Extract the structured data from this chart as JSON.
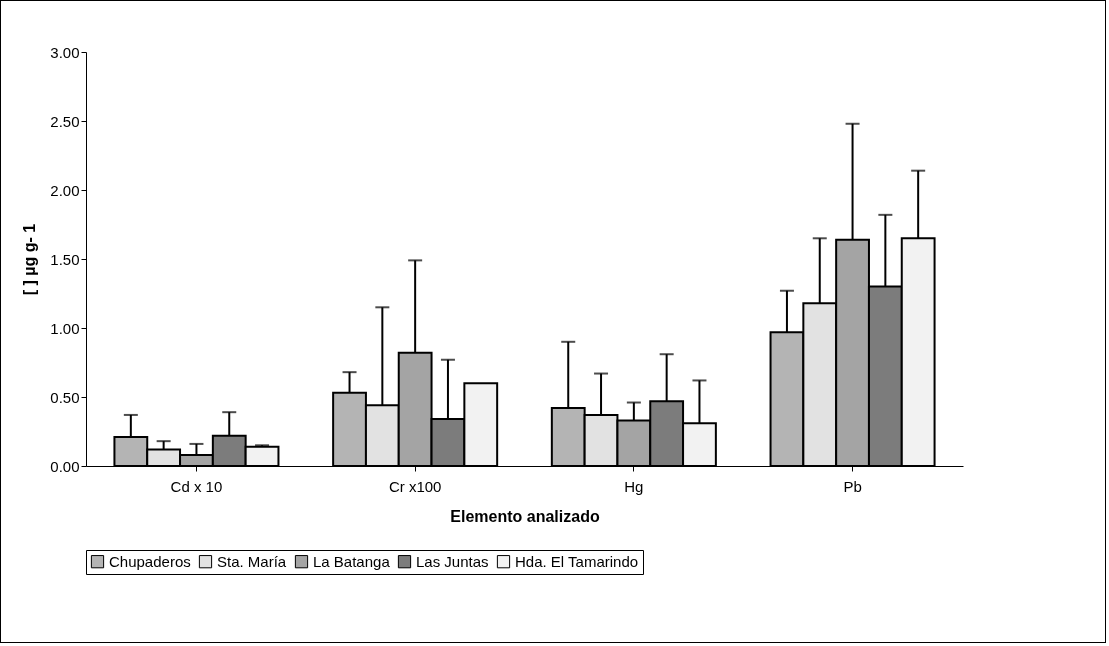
{
  "chart_data": {
    "type": "bar",
    "xlabel": "Elemento analizado",
    "ylabel": "[ ] µg g- 1",
    "categories": [
      "Cd x 10",
      "Cr x100",
      "Hg",
      "Pb"
    ],
    "series": [
      {
        "name": "Chupaderos",
        "color": "#b4b4b4",
        "values": [
          0.21,
          0.53,
          0.42,
          0.97
        ],
        "errors": [
          [
            0.21,
            0.37
          ],
          [
            0.53,
            0.68
          ],
          [
            0.42,
            0.9
          ],
          [
            0.97,
            1.27
          ]
        ]
      },
      {
        "name": "Sta. María",
        "color": "#e2e2e2",
        "values": [
          0.12,
          0.44,
          0.37,
          1.18
        ],
        "errors": [
          [
            0.12,
            0.18
          ],
          [
            0.44,
            1.15
          ],
          [
            0.37,
            0.67
          ],
          [
            1.18,
            1.65
          ]
        ]
      },
      {
        "name": "La Batanga",
        "color": "#a4a4a4",
        "values": [
          0.08,
          0.82,
          0.33,
          1.64
        ],
        "errors": [
          [
            0.08,
            0.16
          ],
          [
            0.82,
            1.49
          ],
          [
            0.33,
            0.46
          ],
          [
            1.64,
            2.48
          ]
        ]
      },
      {
        "name": "Las Juntas",
        "color": "#7c7c7c",
        "values": [
          0.22,
          0.34,
          0.47,
          1.3
        ],
        "errors": [
          [
            0.22,
            0.39
          ],
          [
            0.34,
            0.77
          ],
          [
            0.47,
            0.81
          ],
          [
            1.3,
            1.82
          ]
        ]
      },
      {
        "name": "Hda. El Tamarindo",
        "color": "#f2f2f2",
        "values": [
          0.14,
          0.6,
          0.31,
          1.65
        ],
        "errors": [
          [
            0.14,
            0.15
          ],
          null,
          [
            0.31,
            0.62
          ],
          [
            1.65,
            2.14
          ]
        ]
      }
    ],
    "ylim": [
      0,
      3
    ],
    "yticks": [
      {
        "value": 0,
        "label": "0.00"
      },
      {
        "value": 0.5,
        "label": "0.50"
      },
      {
        "value": 1,
        "label": "1.00"
      },
      {
        "value": 1.5,
        "label": "1.50"
      },
      {
        "value": 2,
        "label": "2.00"
      },
      {
        "value": 2.5,
        "label": "2.50"
      },
      {
        "value": 3,
        "label": "3.00"
      }
    ],
    "grid": false,
    "legend": "bottom"
  }
}
